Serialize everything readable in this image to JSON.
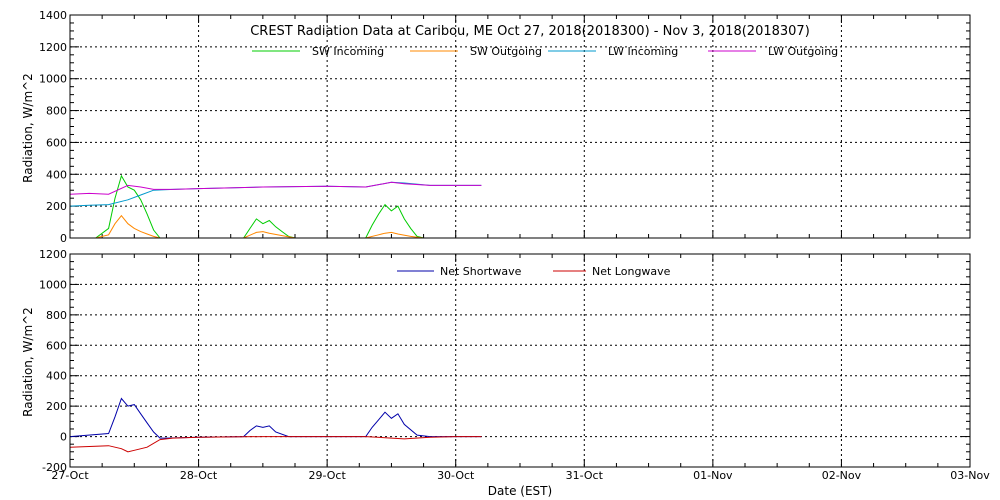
{
  "chart_data": [
    {
      "type": "line",
      "title": "CREST Radiation Data at Caribou, ME   Oct 27, 2018(2018300) - Nov  3, 2018(2018307)",
      "ylabel": "Radiation, W/m^2",
      "xlabel": "",
      "x_ticks": [
        "27-Oct",
        "28-Oct",
        "29-Oct",
        "30-Oct",
        "31-Oct",
        "01-Nov",
        "02-Nov",
        "03-Nov"
      ],
      "xlim": [
        0,
        7
      ],
      "ylim": [
        0,
        1400
      ],
      "y_ticks": [
        0,
        200,
        400,
        600,
        800,
        1000,
        1200,
        1400
      ],
      "grid": true,
      "legend_position": "top",
      "series": [
        {
          "name": "SW Incoming",
          "color": "#00cc00",
          "x": [
            0.2,
            0.3,
            0.35,
            0.4,
            0.45,
            0.5,
            0.55,
            0.6,
            0.65,
            0.7,
            0.75,
            1.35,
            1.4,
            1.45,
            1.5,
            1.55,
            1.6,
            1.65,
            1.7,
            1.75,
            2.3,
            2.35,
            2.4,
            2.45,
            2.5,
            2.55,
            2.6,
            2.65,
            2.7,
            2.75
          ],
          "y": [
            0,
            60,
            250,
            390,
            320,
            300,
            240,
            150,
            50,
            0,
            0,
            0,
            60,
            120,
            90,
            110,
            70,
            40,
            10,
            0,
            0,
            80,
            150,
            210,
            170,
            200,
            120,
            60,
            10,
            0
          ]
        },
        {
          "name": "SW Outgoing",
          "color": "#ff8800",
          "x": [
            0.2,
            0.3,
            0.35,
            0.4,
            0.45,
            0.5,
            0.55,
            0.6,
            0.65,
            0.7,
            1.35,
            1.45,
            1.5,
            1.55,
            1.65,
            1.75,
            2.3,
            2.4,
            2.45,
            2.5,
            2.55,
            2.65,
            2.75
          ],
          "y": [
            0,
            20,
            90,
            140,
            90,
            60,
            40,
            25,
            10,
            0,
            0,
            35,
            40,
            30,
            15,
            0,
            0,
            20,
            30,
            35,
            25,
            10,
            0
          ]
        },
        {
          "name": "LW Incoming",
          "color": "#0099cc",
          "x": [
            0,
            0.15,
            0.3,
            0.45,
            0.55,
            0.65,
            0.8,
            1.0,
            1.5,
            2.0,
            2.3,
            2.5,
            2.6,
            2.8,
            3.0,
            3.2
          ],
          "y": [
            200,
            205,
            210,
            240,
            270,
            300,
            305,
            310,
            320,
            325,
            320,
            350,
            345,
            330,
            330,
            330
          ]
        },
        {
          "name": "LW Outgoing",
          "color": "#cc00cc",
          "x": [
            0,
            0.15,
            0.3,
            0.45,
            0.55,
            0.65,
            0.8,
            1.0,
            1.5,
            2.0,
            2.3,
            2.5,
            2.6,
            2.8,
            3.0,
            3.2
          ],
          "y": [
            275,
            280,
            275,
            330,
            320,
            305,
            305,
            310,
            320,
            325,
            320,
            350,
            340,
            330,
            330,
            330
          ]
        }
      ]
    },
    {
      "type": "line",
      "title": "",
      "ylabel": "Radiation, W/m^2",
      "xlabel": "Date (EST)",
      "x_ticks": [
        "27-Oct",
        "28-Oct",
        "29-Oct",
        "30-Oct",
        "31-Oct",
        "01-Nov",
        "02-Nov",
        "03-Nov"
      ],
      "xlim": [
        0,
        7
      ],
      "ylim": [
        -200,
        1200
      ],
      "y_ticks": [
        -200,
        0,
        200,
        400,
        600,
        800,
        1000,
        1200
      ],
      "grid": true,
      "legend_position": "top",
      "series": [
        {
          "name": "Net Shortwave",
          "color": "#0000aa",
          "x": [
            0,
            0.3,
            0.35,
            0.4,
            0.45,
            0.5,
            0.55,
            0.6,
            0.65,
            0.7,
            0.75,
            1.0,
            1.35,
            1.4,
            1.45,
            1.5,
            1.55,
            1.6,
            1.7,
            1.8,
            2.0,
            2.3,
            2.35,
            2.4,
            2.45,
            2.5,
            2.55,
            2.6,
            2.7,
            2.8,
            3.0,
            3.2
          ],
          "y": [
            0,
            20,
            130,
            250,
            200,
            210,
            150,
            90,
            30,
            -10,
            -10,
            -5,
            0,
            40,
            70,
            60,
            70,
            30,
            0,
            0,
            0,
            0,
            60,
            110,
            160,
            120,
            150,
            80,
            10,
            0,
            0,
            0
          ]
        },
        {
          "name": "Net Longwave",
          "color": "#cc0000",
          "x": [
            0,
            0.15,
            0.3,
            0.4,
            0.45,
            0.5,
            0.6,
            0.7,
            0.8,
            1.0,
            1.5,
            2.0,
            2.3,
            2.5,
            2.6,
            2.8,
            3.0,
            3.2
          ],
          "y": [
            -70,
            -65,
            -60,
            -80,
            -100,
            -90,
            -70,
            -20,
            -10,
            -5,
            0,
            0,
            0,
            -10,
            -15,
            -5,
            0,
            0
          ]
        }
      ]
    }
  ]
}
